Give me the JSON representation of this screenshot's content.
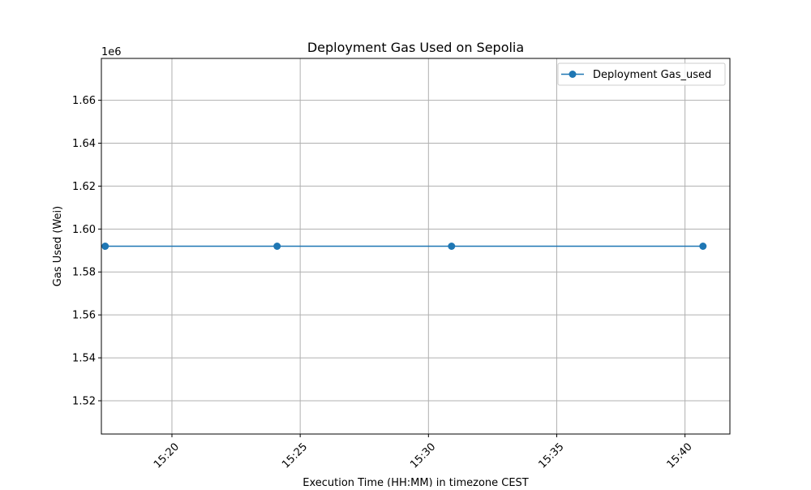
{
  "chart_data": {
    "type": "line",
    "title": "Deployment Gas Used on Sepolia",
    "xlabel": "Execution Time (HH:MM) in timezone CEST",
    "ylabel": "Gas Used (Wei)",
    "y_offset_label": "1e6",
    "x_ticks": [
      "15:20",
      "15:25",
      "15:30",
      "15:35",
      "15:40"
    ],
    "y_ticks": [
      "1.52",
      "1.54",
      "1.56",
      "1.58",
      "1.60",
      "1.62",
      "1.64",
      "1.66"
    ],
    "xlim": [
      "15:17:15",
      "15:41:45"
    ],
    "ylim": [
      1.5045,
      1.6795
    ],
    "series": [
      {
        "name": "Deployment Gas_used",
        "color": "#1f77b4",
        "marker": "circle",
        "x": [
          "15:17:24",
          "15:24:06",
          "15:30:54",
          "15:40:42"
        ],
        "y": [
          1.592,
          1.592,
          1.592,
          1.592
        ]
      }
    ],
    "grid": true,
    "legend_position": "top-right"
  }
}
